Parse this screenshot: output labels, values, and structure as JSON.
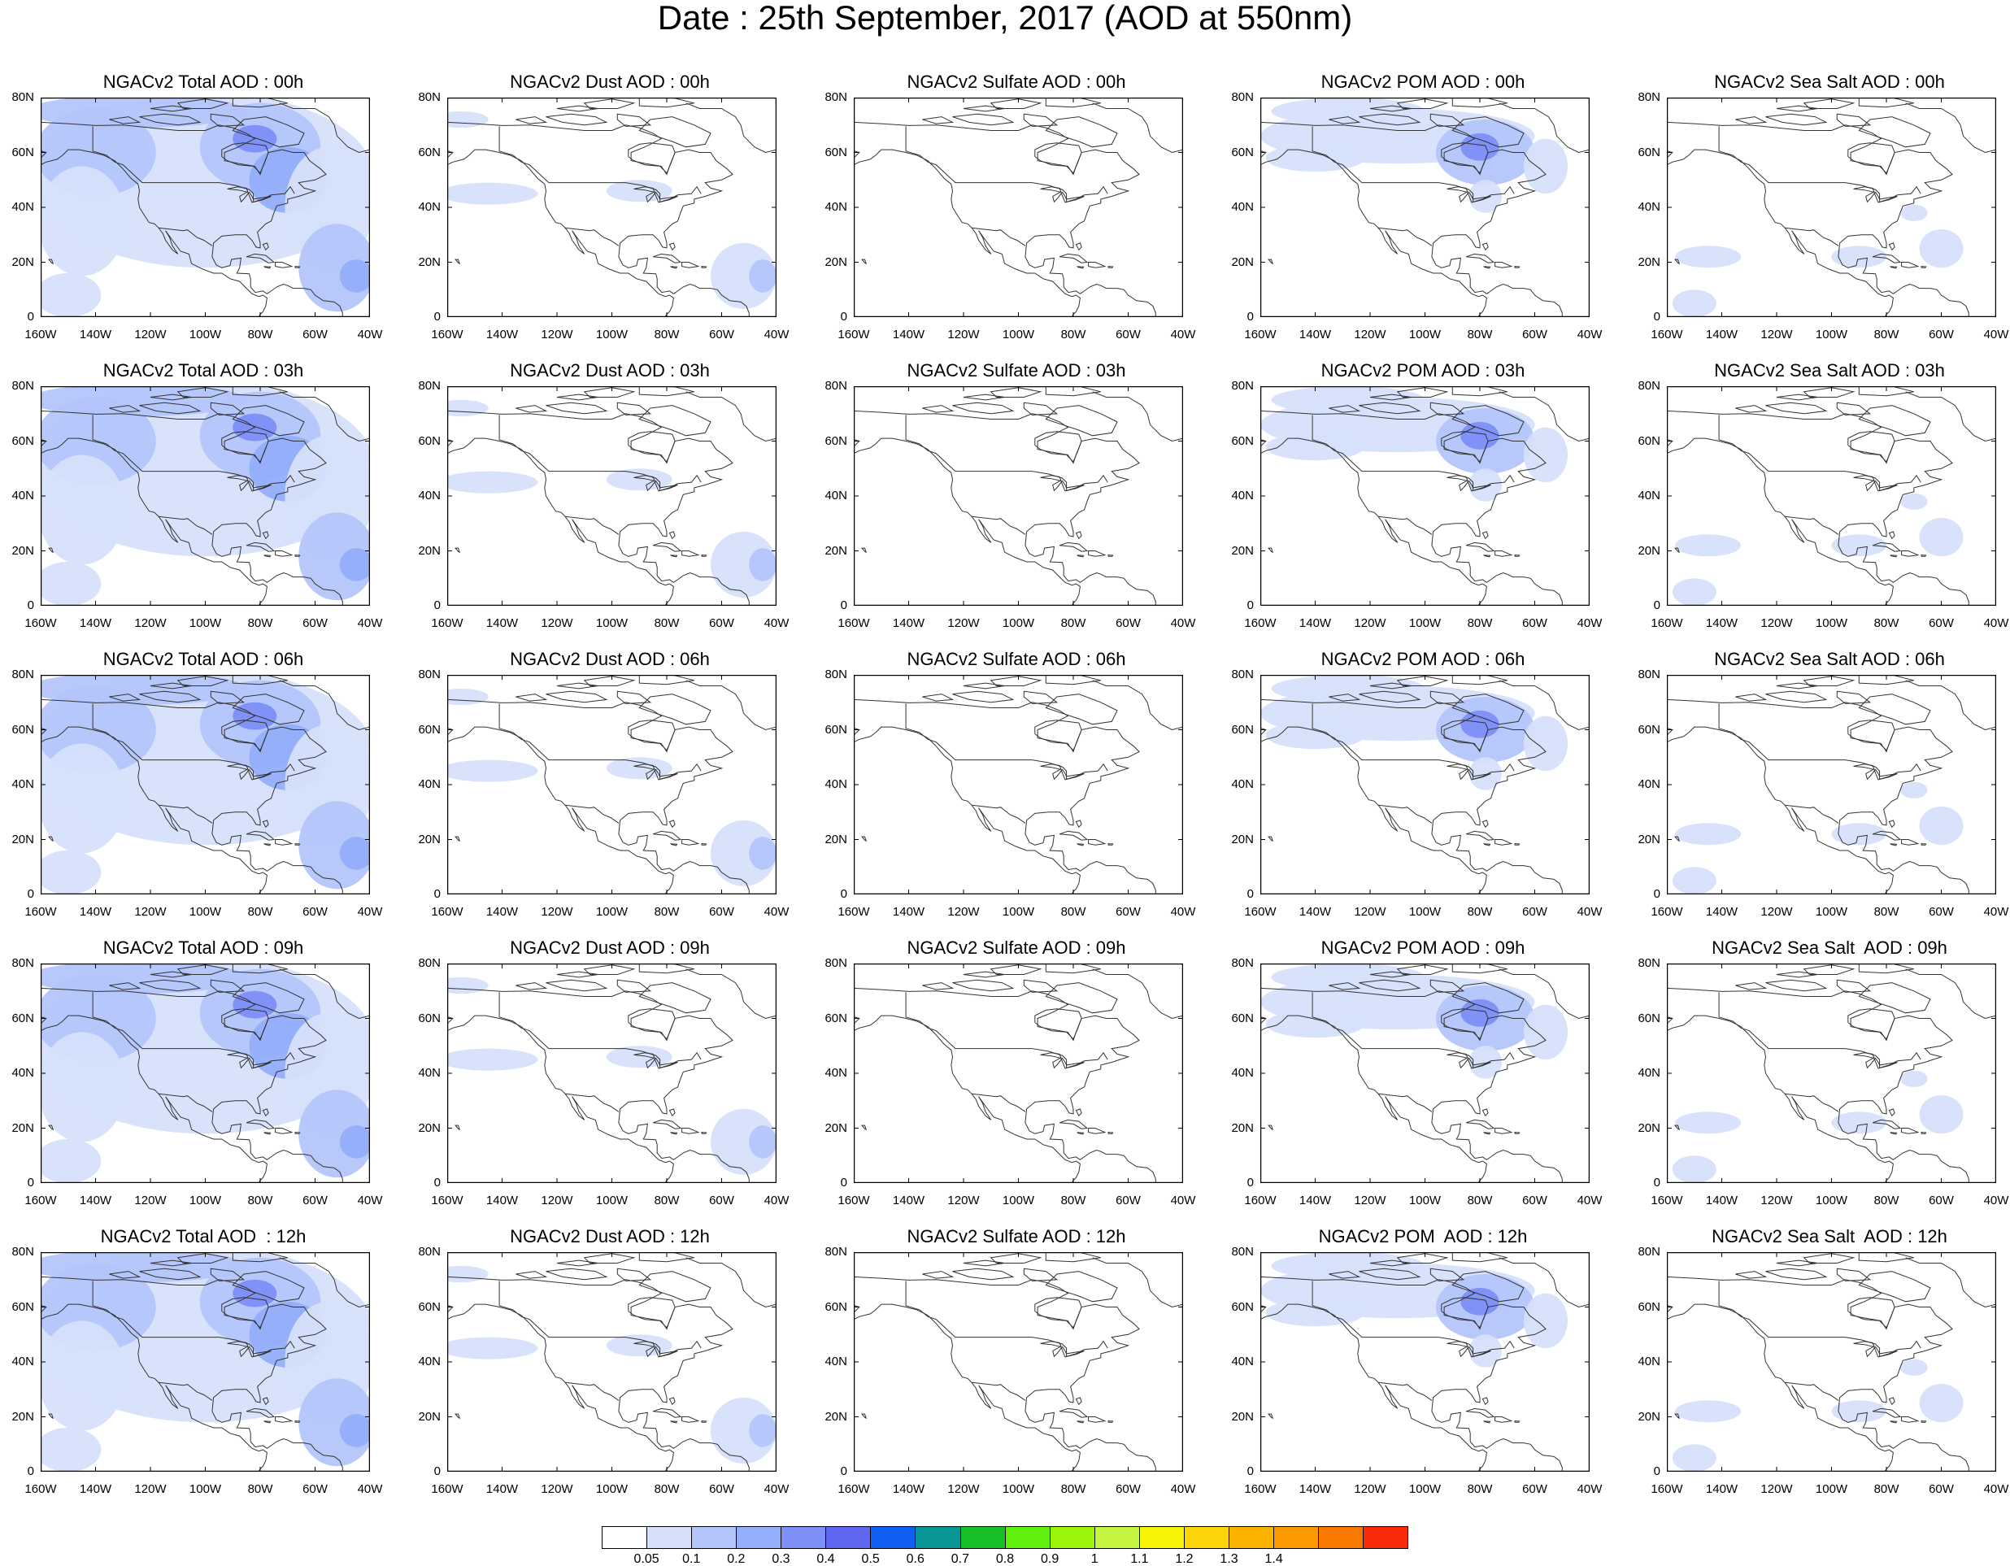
{
  "title": "Date : 25th September, 2017 (AOD at 550nm)",
  "lat_ticks": [
    "80N",
    "60N",
    "40N",
    "20N",
    "0"
  ],
  "lon_ticks": [
    "160W",
    "140W",
    "120W",
    "100W",
    "80W",
    "60W",
    "40W"
  ],
  "panels": [
    {
      "title": "NGACv2 Total AOD : 00h",
      "variable": "Total",
      "hour": "00h",
      "pattern": "total"
    },
    {
      "title": "NGACv2 Dust AOD : 00h",
      "variable": "Dust",
      "hour": "00h",
      "pattern": "dust"
    },
    {
      "title": "NGACv2 Sulfate AOD : 00h",
      "variable": "Sulfate",
      "hour": "00h",
      "pattern": "sulfate"
    },
    {
      "title": "NGACv2 POM AOD : 00h",
      "variable": "POM",
      "hour": "00h",
      "pattern": "pom"
    },
    {
      "title": "NGACv2 Sea Salt AOD : 00h",
      "variable": "Sea Salt",
      "hour": "00h",
      "pattern": "seasalt"
    },
    {
      "title": "NGACv2 Total AOD : 03h",
      "variable": "Total",
      "hour": "03h",
      "pattern": "total"
    },
    {
      "title": "NGACv2 Dust AOD : 03h",
      "variable": "Dust",
      "hour": "03h",
      "pattern": "dust"
    },
    {
      "title": "NGACv2 Sulfate AOD : 03h",
      "variable": "Sulfate",
      "hour": "03h",
      "pattern": "sulfate"
    },
    {
      "title": "NGACv2 POM AOD : 03h",
      "variable": "POM",
      "hour": "03h",
      "pattern": "pom"
    },
    {
      "title": "NGACv2 Sea Salt AOD : 03h",
      "variable": "Sea Salt",
      "hour": "03h",
      "pattern": "seasalt"
    },
    {
      "title": "NGACv2 Total AOD : 06h",
      "variable": "Total",
      "hour": "06h",
      "pattern": "total"
    },
    {
      "title": "NGACv2 Dust AOD : 06h",
      "variable": "Dust",
      "hour": "06h",
      "pattern": "dust"
    },
    {
      "title": "NGACv2 Sulfate AOD : 06h",
      "variable": "Sulfate",
      "hour": "06h",
      "pattern": "sulfate"
    },
    {
      "title": "NGACv2 POM AOD : 06h",
      "variable": "POM",
      "hour": "06h",
      "pattern": "pom"
    },
    {
      "title": "NGACv2 Sea Salt AOD : 06h",
      "variable": "Sea Salt",
      "hour": "06h",
      "pattern": "seasalt"
    },
    {
      "title": "NGACv2 Total AOD : 09h",
      "variable": "Total",
      "hour": "09h",
      "pattern": "total"
    },
    {
      "title": "NGACv2 Dust AOD : 09h",
      "variable": "Dust",
      "hour": "09h",
      "pattern": "dust"
    },
    {
      "title": "NGACv2 Sulfate AOD : 09h",
      "variable": "Sulfate",
      "hour": "09h",
      "pattern": "sulfate"
    },
    {
      "title": "NGACv2 POM AOD : 09h",
      "variable": "POM",
      "hour": "09h",
      "pattern": "pom"
    },
    {
      "title": "NGACv2 Sea Salt  AOD : 09h",
      "variable": "Sea Salt",
      "hour": "09h",
      "pattern": "seasalt"
    },
    {
      "title": "NGACv2 Total AOD  : 12h",
      "variable": "Total",
      "hour": "12h",
      "pattern": "total"
    },
    {
      "title": "NGACv2 Dust AOD : 12h",
      "variable": "Dust",
      "hour": "12h",
      "pattern": "dust"
    },
    {
      "title": "NGACv2 Sulfate AOD : 12h",
      "variable": "Sulfate",
      "hour": "12h",
      "pattern": "sulfate"
    },
    {
      "title": "NGACv2 POM  AOD : 12h",
      "variable": "POM",
      "hour": "12h",
      "pattern": "pom"
    },
    {
      "title": "NGACv2 Sea Salt  AOD : 12h",
      "variable": "Sea Salt",
      "hour": "12h",
      "pattern": "seasalt"
    }
  ],
  "colorbar": {
    "colors": [
      "#ffffff",
      "#d6e0fb",
      "#b4c5fb",
      "#93aefb",
      "#7d8ff8",
      "#5f67f0",
      "#0f5ff5",
      "#0a9696",
      "#18c12c",
      "#61f00c",
      "#9bf50a",
      "#c6f53f",
      "#f7f409",
      "#fcd50a",
      "#fcb300",
      "#fa9a00",
      "#fa7a00",
      "#fa2a0a"
    ],
    "labels": [
      "0.05",
      "0.1",
      "0.2",
      "0.3",
      "0.4",
      "0.5",
      "0.6",
      "0.7",
      "0.8",
      "0.9",
      "1",
      "1.1",
      "1.2",
      "1.3",
      "1.4"
    ]
  }
}
